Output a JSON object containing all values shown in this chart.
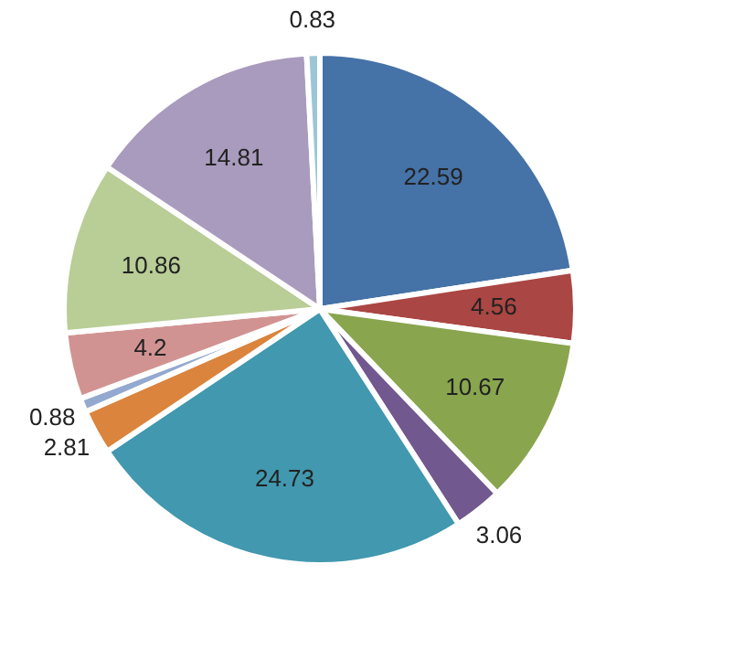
{
  "chart_data": {
    "type": "pie",
    "categories": [
      null,
      null,
      null,
      null,
      null,
      null,
      null,
      null,
      null,
      null,
      null
    ],
    "values": [
      22.59,
      4.56,
      10.67,
      3.06,
      24.73,
      2.81,
      0.88,
      4.2,
      10.86,
      14.81,
      0.83
    ],
    "colors": [
      "#4572a7",
      "#aa4643",
      "#89a54e",
      "#71588f",
      "#4198af",
      "#db843d",
      "#93a9cf",
      "#d19392",
      "#b9cd96",
      "#a99bbd",
      "#9cc6d6"
    ],
    "data_labels": true,
    "legend": false
  }
}
